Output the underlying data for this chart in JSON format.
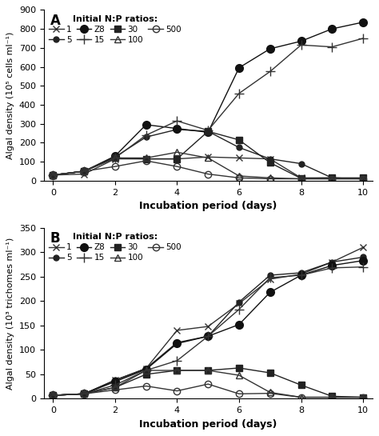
{
  "days": [
    0,
    1,
    2,
    3,
    4,
    5,
    6,
    7,
    8,
    9,
    10
  ],
  "panel_A": {
    "title": "A",
    "ylabel": "Algal density (10⁵ cells ml⁻¹)",
    "xlabel": "Incubation period (days)",
    "ylim": [
      0,
      900
    ],
    "yticks": [
      0,
      100,
      200,
      300,
      400,
      500,
      600,
      700,
      800,
      900
    ],
    "series": [
      {
        "label": "1",
        "marker": "x",
        "linestyle": "-",
        "color": "#333333",
        "fillstyle": "full",
        "markersize": 6,
        "data": [
          30,
          35,
          115,
          115,
          115,
          125,
          120,
          115,
          15,
          15,
          10
        ]
      },
      {
        "label": "5",
        "marker": "o",
        "linestyle": "-",
        "color": "#222222",
        "fillstyle": "full",
        "markersize": 5,
        "data": [
          30,
          50,
          125,
          230,
          270,
          260,
          175,
          115,
          90,
          15,
          10
        ]
      },
      {
        "label": "Z8",
        "marker": "o",
        "linestyle": "-",
        "color": "#111111",
        "fillstyle": "full",
        "markersize": 7,
        "data": [
          30,
          50,
          130,
          295,
          275,
          255,
          595,
          695,
          735,
          800,
          835
        ]
      },
      {
        "label": "15",
        "marker": "+",
        "linestyle": "-",
        "color": "#333333",
        "fillstyle": "full",
        "markersize": 8,
        "data": [
          30,
          50,
          120,
          240,
          315,
          265,
          460,
          575,
          715,
          705,
          750
        ]
      },
      {
        "label": "30",
        "marker": "s",
        "linestyle": "-",
        "color": "#222222",
        "fillstyle": "full",
        "markersize": 6,
        "data": [
          30,
          50,
          120,
          115,
          115,
          260,
          215,
          95,
          12,
          15,
          15
        ]
      },
      {
        "label": "100",
        "marker": "^",
        "linestyle": "-",
        "color": "#333333",
        "fillstyle": "none",
        "markersize": 6,
        "data": [
          30,
          50,
          120,
          120,
          150,
          120,
          25,
          15,
          10,
          10,
          10
        ]
      },
      {
        "label": "500",
        "marker": "o",
        "linestyle": "-",
        "color": "#333333",
        "fillstyle": "none",
        "markersize": 6,
        "data": [
          30,
          50,
          75,
          105,
          75,
          35,
          15,
          10,
          10,
          10,
          10
        ]
      }
    ]
  },
  "panel_B": {
    "title": "B",
    "ylabel": "Algal density (10³ trichomes ml⁻¹)",
    "xlabel": "Incubation period (days)",
    "ylim": [
      0,
      350
    ],
    "yticks": [
      0,
      50,
      100,
      150,
      200,
      250,
      300,
      350
    ],
    "series": [
      {
        "label": "1",
        "marker": "x",
        "linestyle": "-",
        "color": "#333333",
        "fillstyle": "full",
        "markersize": 6,
        "data": [
          7,
          10,
          38,
          62,
          140,
          148,
          195,
          245,
          255,
          280,
          310
        ]
      },
      {
        "label": "5",
        "marker": "o",
        "linestyle": "-",
        "color": "#222222",
        "fillstyle": "full",
        "markersize": 5,
        "data": [
          7,
          10,
          38,
          62,
          115,
          128,
          198,
          253,
          258,
          280,
          290
        ]
      },
      {
        "label": "Z8",
        "marker": "o",
        "linestyle": "-",
        "color": "#111111",
        "fillstyle": "full",
        "markersize": 7,
        "data": [
          7,
          10,
          35,
          60,
          113,
          128,
          152,
          218,
          253,
          273,
          283
        ]
      },
      {
        "label": "15",
        "marker": "+",
        "linestyle": "-",
        "color": "#333333",
        "fillstyle": "full",
        "markersize": 8,
        "data": [
          7,
          10,
          28,
          58,
          78,
          128,
          183,
          248,
          253,
          268,
          270
        ]
      },
      {
        "label": "30",
        "marker": "s",
        "linestyle": "-",
        "color": "#222222",
        "fillstyle": "full",
        "markersize": 6,
        "data": [
          7,
          10,
          23,
          50,
          58,
          58,
          63,
          53,
          28,
          5,
          3
        ]
      },
      {
        "label": "100",
        "marker": "^",
        "linestyle": "-",
        "color": "#333333",
        "fillstyle": "none",
        "markersize": 6,
        "data": [
          7,
          10,
          23,
          58,
          58,
          58,
          48,
          13,
          3,
          3,
          3
        ]
      },
      {
        "label": "500",
        "marker": "o",
        "linestyle": "-",
        "color": "#333333",
        "fillstyle": "none",
        "markersize": 6,
        "data": [
          7,
          10,
          18,
          26,
          16,
          30,
          10,
          11,
          3,
          3,
          3
        ]
      }
    ]
  },
  "legend": {
    "title": "Initial N:P ratios:",
    "title_fontsize": 8,
    "fontsize": 7.5,
    "ncol": 4,
    "loc": "upper left"
  }
}
